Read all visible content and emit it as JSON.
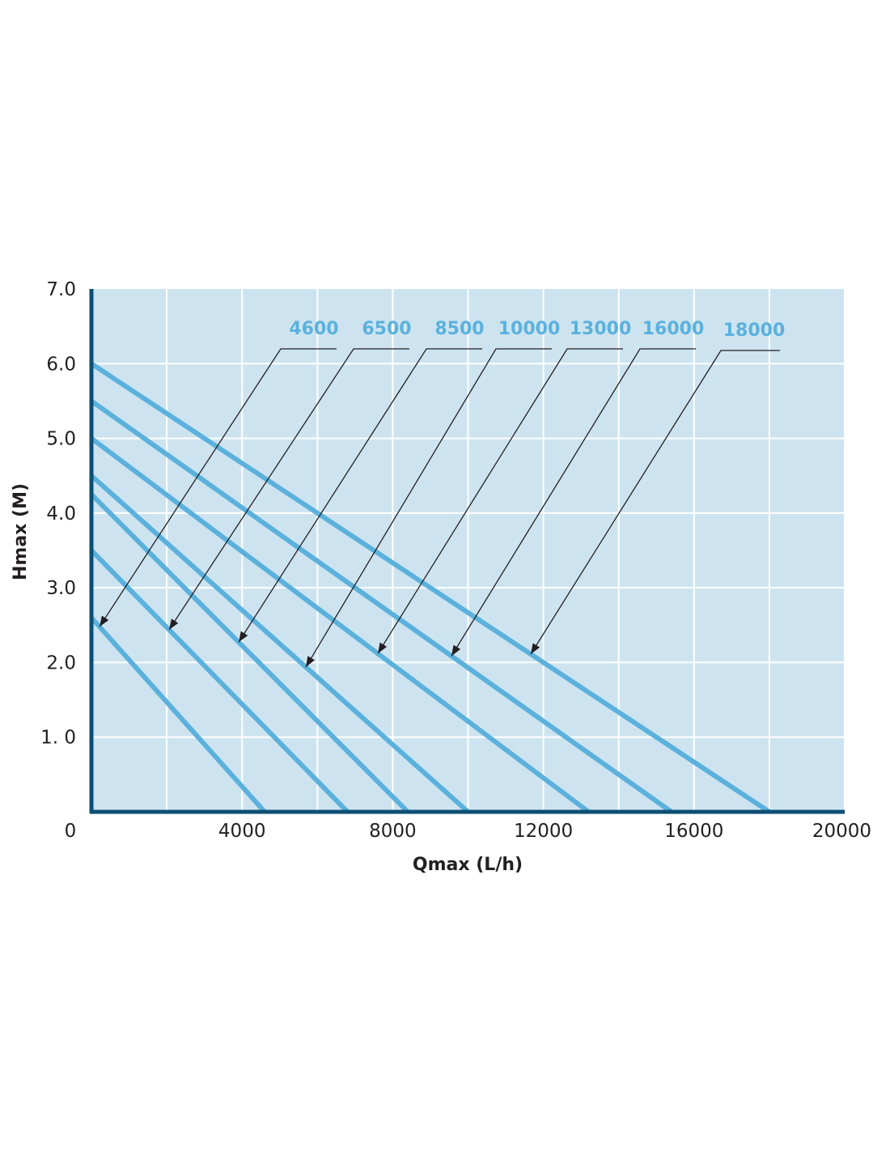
{
  "chart_data": {
    "type": "line",
    "title": "",
    "xlabel": "Qmax (L/h)",
    "ylabel": "Hmax (M)",
    "xlim": [
      0,
      20000
    ],
    "ylim": [
      0,
      7.0
    ],
    "x_ticks": [
      "0",
      "4000",
      "8000",
      "12000",
      "16000",
      "20000"
    ],
    "y_ticks": [
      "1. 0",
      "2.0",
      "3.0",
      "4.0",
      "5.0",
      "6.0",
      "7.0"
    ],
    "grid": true,
    "legend_position": "top-right",
    "colors": {
      "plot_background": "#cde4f0",
      "series_line": "#5bb1dc",
      "axis": "#0d4f74",
      "grid": "#ffffff",
      "leader_line": "#231f20",
      "label": "#5bb1dc"
    },
    "series": [
      {
        "name": "4600",
        "points": [
          [
            0,
            2.6
          ],
          [
            4600,
            0
          ]
        ]
      },
      {
        "name": "6500",
        "points": [
          [
            0,
            3.5
          ],
          [
            6800,
            0
          ]
        ]
      },
      {
        "name": "8500",
        "points": [
          [
            0,
            4.25
          ],
          [
            8400,
            0
          ]
        ]
      },
      {
        "name": "10000",
        "points": [
          [
            0,
            4.5
          ],
          [
            10000,
            0
          ]
        ]
      },
      {
        "name": "13000",
        "points": [
          [
            0,
            5.0
          ],
          [
            13200,
            0
          ]
        ]
      },
      {
        "name": "16000",
        "points": [
          [
            0,
            5.5
          ],
          [
            15400,
            0
          ]
        ]
      },
      {
        "name": "18000",
        "points": [
          [
            0,
            6.0
          ],
          [
            18000,
            0
          ]
        ]
      }
    ]
  }
}
